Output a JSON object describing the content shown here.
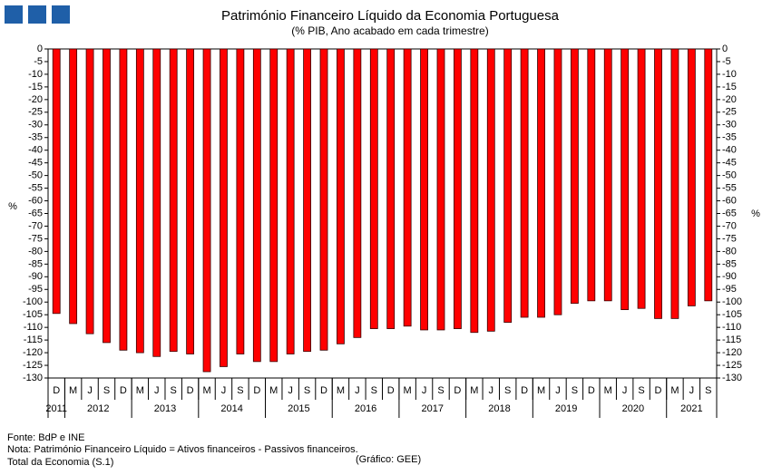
{
  "chart_data": {
    "type": "bar",
    "title": "Património Financeiro Líquido da Economia Portuguesa",
    "subtitle": "(% PIB, Ano acabado em cada trimestre)",
    "y_label": "%",
    "y2_label": "%",
    "categories": [
      "D",
      "M",
      "J",
      "S",
      "D",
      "M",
      "J",
      "S",
      "D",
      "M",
      "J",
      "S",
      "D",
      "M",
      "J",
      "S",
      "D",
      "M",
      "J",
      "S",
      "D",
      "M",
      "J",
      "S",
      "D",
      "M",
      "J",
      "S",
      "D",
      "M",
      "J",
      "S",
      "D",
      "M",
      "J",
      "S",
      "D",
      "M",
      "J",
      "S"
    ],
    "groups": [
      {
        "label": "2011",
        "span": 1
      },
      {
        "label": "2012",
        "span": 4
      },
      {
        "label": "2013",
        "span": 4
      },
      {
        "label": "2014",
        "span": 4
      },
      {
        "label": "2015",
        "span": 4
      },
      {
        "label": "2016",
        "span": 4
      },
      {
        "label": "2017",
        "span": 4
      },
      {
        "label": "2018",
        "span": 4
      },
      {
        "label": "2019",
        "span": 4
      },
      {
        "label": "2020",
        "span": 4
      },
      {
        "label": "2021",
        "span": 3
      }
    ],
    "values": [
      -104.5,
      -108.5,
      -112.5,
      -116,
      -119,
      -120,
      -121.5,
      -119.5,
      -120.5,
      -127.5,
      -125.5,
      -120.5,
      -123.5,
      -123.5,
      -120.5,
      -119.5,
      -119,
      -116.5,
      -114,
      -110.5,
      -110.5,
      -109.5,
      -111,
      -111,
      -110.5,
      -112,
      -111.5,
      -108,
      -106,
      -106,
      -105,
      -100.5,
      -99.5,
      -99.5,
      -103,
      -102.5,
      -106.5,
      -106.5,
      -101.5,
      -99.5
    ],
    "color": "#ff0000",
    "ylim": [
      0,
      -130
    ],
    "yticks": [
      0,
      -5,
      -10,
      -15,
      -20,
      -25,
      -30,
      -35,
      -40,
      -45,
      -50,
      -55,
      -60,
      -65,
      -70,
      -75,
      -80,
      -85,
      -90,
      -95,
      -100,
      -105,
      -110,
      -115,
      -120,
      -125,
      -130
    ],
    "grid": false
  },
  "footer": {
    "source": "Fonte: BdP e INE",
    "note": "Nota: Património Financeiro Líquido = Ativos financeiros - Passivos financeiros.",
    "note2": "Total da Economia (S.1)",
    "credit": "(Gráfico: GEE)"
  }
}
